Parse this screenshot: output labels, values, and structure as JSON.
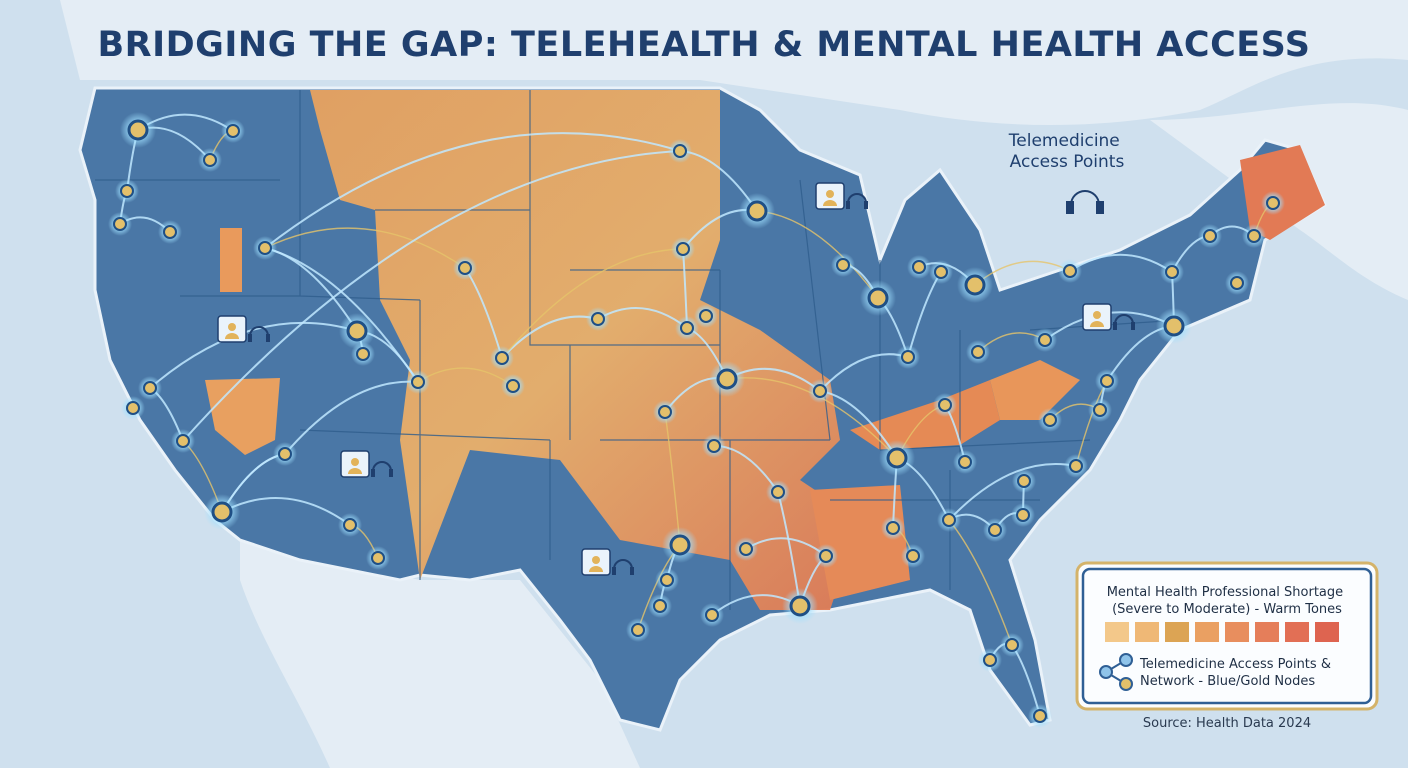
{
  "title": "BRIDGING THE GAP: TELEHEALTH & MENTAL HEALTH ACCESS",
  "annotation": {
    "lines": [
      "Telemedicine",
      "Access Points"
    ]
  },
  "legend": {
    "shortage": {
      "lines": [
        "Mental Health Professional Shortage",
        "(Severe to Moderate) - Warm Tones"
      ]
    },
    "network": {
      "lines": [
        "Telemedicine Access Points &",
        "Network - Blue/Gold Nodes"
      ]
    }
  },
  "source": "Source: Health Data 2024"
}
